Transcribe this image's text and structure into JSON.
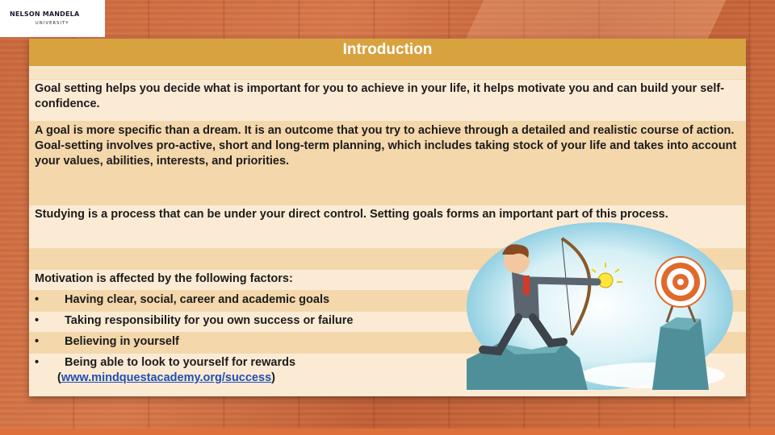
{
  "logo": {
    "name": "NELSON MANDELA",
    "sub": "UNIVERSITY"
  },
  "header": {
    "title": "Introduction"
  },
  "paragraphs": [
    "Goal setting helps you decide what is important for you to achieve in your life, it helps motivate you and can build your self-confidence.",
    "A goal is more specific than a dream.  It is an outcome that you try to achieve through a detailed and realistic course of action.  Goal-setting involves pro-active, short and long-term planning, which includes taking stock of your life and takes into account your values, abilities, interests, and priorities.",
    "Studying is a process that can be under your direct control. Setting goals forms an important part of this process."
  ],
  "motivation": {
    "heading": "Motivation is affected by the following factors:",
    "bullet_symbol": "•",
    "factors": [
      "Having clear, social, career and academic goals",
      "Taking responsibility for you own success or failure",
      "Believing in yourself",
      "Being able to look to yourself for rewards"
    ],
    "source_open": "(",
    "source_link": "www.mindquestacademy.org/success",
    "source_close": ")"
  },
  "colors": {
    "header_bg": "#d8a23f",
    "row_light": "#fcebd4",
    "row_dark": "#f4d7aa",
    "link": "#1f4fb3",
    "background": "#c9673b"
  },
  "illustration": {
    "icon": "archer-businessman-target-icon"
  }
}
